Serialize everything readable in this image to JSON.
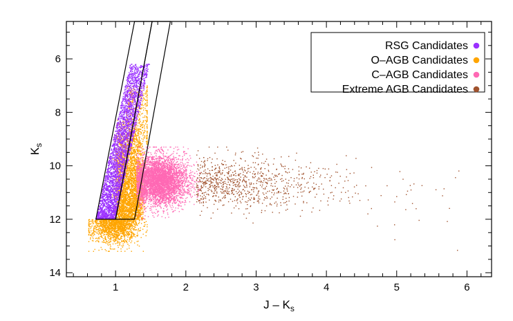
{
  "chart_data": {
    "type": "scatter",
    "title": "",
    "xlabel": "J – K",
    "xlabel_subscript": "s",
    "ylabel": "K",
    "ylabel_subscript": "s",
    "xlim": [
      0.3,
      6.35
    ],
    "ylim": [
      14.15,
      4.6
    ],
    "y_inverted": true,
    "x_ticks": [
      1,
      2,
      3,
      4,
      5,
      6
    ],
    "y_ticks": [
      6,
      8,
      10,
      12,
      14
    ],
    "x_tick_labels": [
      "1",
      "2",
      "3",
      "4",
      "5",
      "6"
    ],
    "y_tick_labels": [
      "6",
      "8",
      "10",
      "12",
      "14"
    ],
    "legend_position": "top-right",
    "series": [
      {
        "name": "RSG Candidates",
        "color": "#9b30ff",
        "bounds": {
          "k_min": 6.2,
          "k_max": 12.0,
          "x_left_at_k12": 0.72,
          "x_left_at_k6": 1.22,
          "width": 0.28
        },
        "approx_points": 3500
      },
      {
        "name": "O–AGB Candidates",
        "color": "#ffa500",
        "bounds": {
          "k_min": 6.8,
          "k_max": 13.2,
          "x_min": 0.62,
          "x_max": 1.45
        },
        "approx_points": 5000
      },
      {
        "name": "C–AGB Candidates",
        "color": "#ff69b4",
        "bounds": {
          "k_min": 9.3,
          "k_max": 12.0,
          "x_min": 1.25,
          "x_max": 2.2
        },
        "approx_points": 4500
      },
      {
        "name": "Extreme AGB Candidates",
        "color": "#a0522d",
        "bounds": {
          "k_min": 9.3,
          "k_max": 13.3,
          "x_min": 2.05,
          "x_max": 6.05
        },
        "approx_points": 900
      }
    ],
    "selection_boxes": [
      {
        "name": "rsg-box",
        "corners": [
          [
            0.72,
            12.0
          ],
          [
            1.0,
            12.0
          ],
          [
            1.52,
            4.6
          ],
          [
            1.27,
            4.6
          ]
        ]
      },
      {
        "name": "agb-box",
        "corners": [
          [
            1.0,
            12.0
          ],
          [
            1.27,
            12.0
          ],
          [
            1.78,
            4.6
          ],
          [
            1.52,
            4.6
          ]
        ]
      }
    ]
  }
}
